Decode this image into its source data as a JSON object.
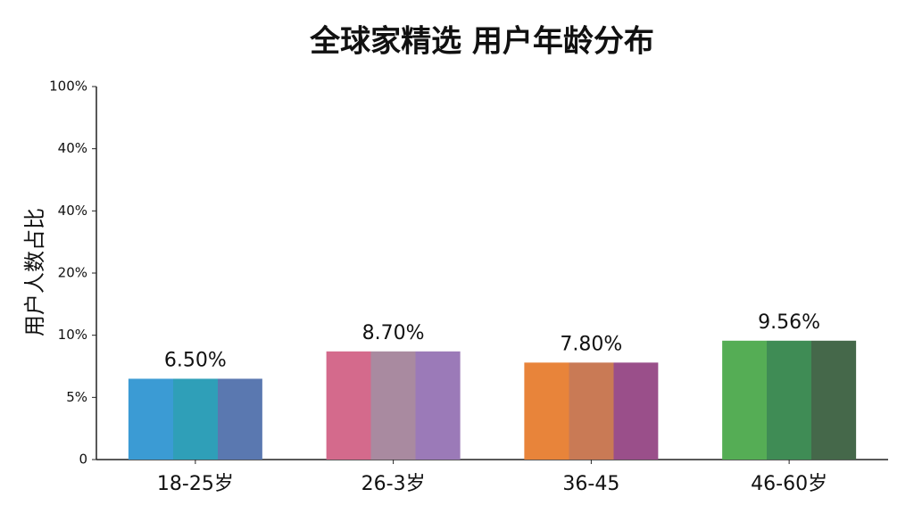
{
  "chart_data": {
    "type": "bar",
    "title": "全球家精选 用户年龄分布",
    "y_label": "用户人数占比",
    "categories": [
      "18-25岁",
      "26-3岁",
      "36-45",
      "46-60岁"
    ],
    "values": [
      6.5,
      8.7,
      7.8,
      9.56
    ],
    "value_labels": [
      "6.50%",
      "8.70%",
      "7.80%",
      "9.56%"
    ],
    "colors": [
      [
        "#3b9bd4",
        "#2f9fb8",
        "#5a78b0"
      ],
      [
        "#d46a8c",
        "#a98aa0",
        "#9b7ab8"
      ],
      [
        "#e8843a",
        "#c97a55",
        "#9a4f8a"
      ],
      [
        "#55ad55",
        "#3f8c55",
        "#45684a"
      ]
    ],
    "ylim": [
      0,
      100
    ],
    "yticks": [
      0,
      {
        "value": 5,
        "label": "5%"
      },
      {
        "value": 10,
        "label": "10%"
      },
      {
        "value": 20,
        "label": "20%"
      },
      {
        "value": 40,
        "label": "40%"
      },
      {
        "value": 40,
        "label": "40%"
      },
      {
        "value": 100,
        "label": "100%"
      }
    ]
  }
}
